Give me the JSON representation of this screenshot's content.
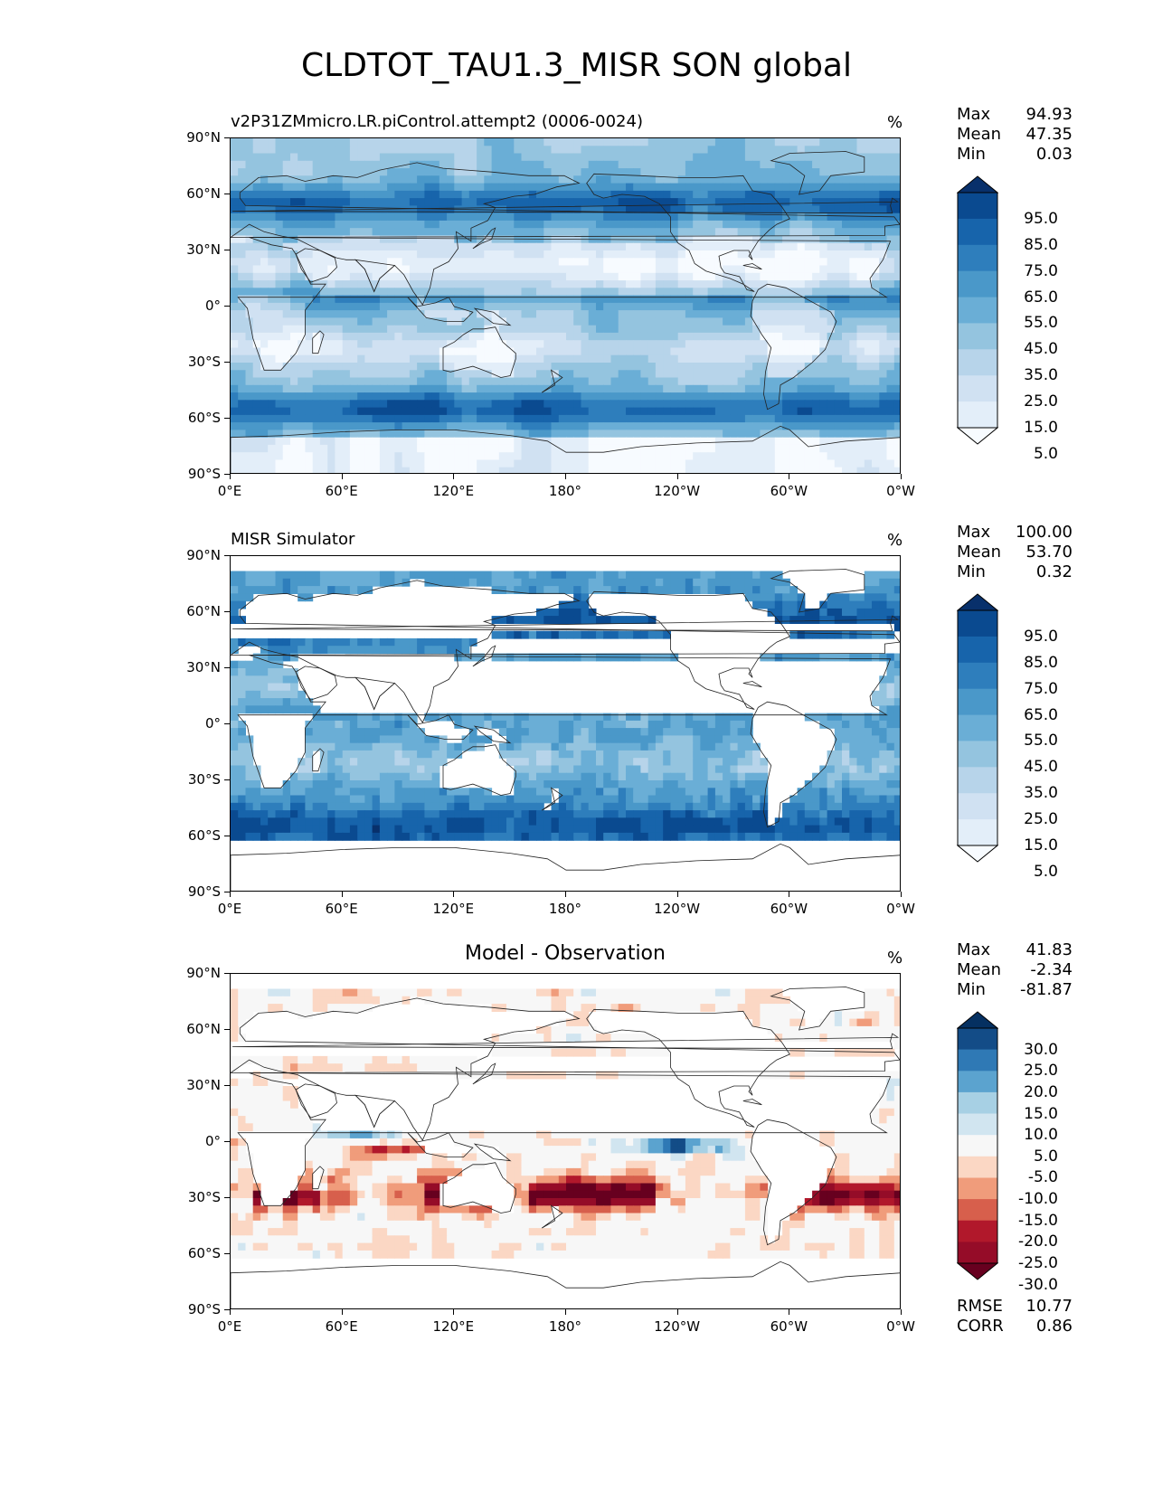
{
  "figure": {
    "title": "CLDTOT_TAU1.3_MISR SON global"
  },
  "axes": {
    "lat_ticks": [
      "90°N",
      "60°N",
      "30°N",
      "0°",
      "30°S",
      "60°S",
      "90°S"
    ],
    "lon_ticks": [
      "0°E",
      "60°E",
      "120°E",
      "180°",
      "120°W",
      "60°W",
      "0°W"
    ]
  },
  "panels": [
    {
      "subtitle": "v2P31ZMmicro.LR.piControl.attempt2 (0006-0024)",
      "units": "%",
      "stats": {
        "max_label": "Max",
        "max": "94.93",
        "mean_label": "Mean",
        "mean": "47.35",
        "min_label": "Min",
        "min": "0.03"
      },
      "colorbar_labels": [
        "95.0",
        "85.0",
        "75.0",
        "65.0",
        "55.0",
        "45.0",
        "35.0",
        "25.0",
        "15.0",
        "5.0"
      ],
      "colors": [
        "#08306b",
        "#0a4a90",
        "#1764ab",
        "#2e7ebc",
        "#4a98c9",
        "#6aaed6",
        "#94c4df",
        "#b7d4ea",
        "#d0e1f2",
        "#e3eef9",
        "#f7fbff"
      ]
    },
    {
      "subtitle": "MISR Simulator",
      "units": "%",
      "stats": {
        "max_label": "Max",
        "max": "100.00",
        "mean_label": "Mean",
        "mean": "53.70",
        "min_label": "Min",
        "min": "0.32"
      },
      "colorbar_labels": [
        "95.0",
        "85.0",
        "75.0",
        "65.0",
        "55.0",
        "45.0",
        "35.0",
        "25.0",
        "15.0",
        "5.0"
      ],
      "colors": [
        "#08306b",
        "#0a4a90",
        "#1764ab",
        "#2e7ebc",
        "#4a98c9",
        "#6aaed6",
        "#94c4df",
        "#b7d4ea",
        "#d0e1f2",
        "#e3eef9",
        "#f7fbff"
      ]
    },
    {
      "subtitle": "Model - Observation",
      "units": "%",
      "stats": {
        "max_label": "Max",
        "max": "41.83",
        "mean_label": "Mean",
        "mean": "-2.34",
        "min_label": "Min",
        "min": "-81.87"
      },
      "colorbar_labels": [
        "30.0",
        "25.0",
        "20.0",
        "15.0",
        "10.0",
        "5.0",
        "-5.0",
        "-10.0",
        "-15.0",
        "-20.0",
        "-25.0",
        "-30.0"
      ],
      "colors": [
        "#053061",
        "#134c87",
        "#2f79b5",
        "#5ba3cf",
        "#a7d0e4",
        "#d1e5f0",
        "#f7f7f7",
        "#fbd7c4",
        "#f09c7b",
        "#d75f4c",
        "#b1182b",
        "#950c28",
        "#67001f"
      ],
      "metrics": {
        "rmse_label": "RMSE",
        "rmse": "10.77",
        "corr_label": "CORR",
        "corr": "0.86"
      }
    }
  ],
  "chart_data": [
    {
      "type": "heatmap",
      "title": "v2P31ZMmicro.LR.piControl.attempt2 (0006-0024)",
      "units": "%",
      "xlim": [
        0,
        360
      ],
      "ylim": [
        -90,
        90
      ],
      "x_ticks": [
        "0°E",
        "60°E",
        "120°E",
        "180°",
        "120°W",
        "60°W",
        "0°W"
      ],
      "y_ticks": [
        "90°N",
        "60°N",
        "30°N",
        "0°",
        "30°S",
        "60°S",
        "90°S"
      ],
      "levels": [
        0,
        5,
        15,
        25,
        35,
        45,
        55,
        65,
        75,
        85,
        95,
        100
      ],
      "max": 94.93,
      "mean": 47.35,
      "min": 0.03,
      "map": "global cloud fraction, high over mid-latitude storm tracks (~85%), low over subtropical deserts and Antarctica (<15%)"
    },
    {
      "type": "heatmap",
      "title": "MISR Simulator",
      "units": "%",
      "xlim": [
        0,
        360
      ],
      "ylim": [
        -90,
        90
      ],
      "levels": [
        0,
        5,
        15,
        25,
        35,
        45,
        55,
        65,
        75,
        85,
        95,
        100
      ],
      "max": 100.0,
      "mean": 53.7,
      "min": 0.32,
      "map": "ocean only, valid between ~60°S and ~82°N, land masked white"
    },
    {
      "type": "heatmap",
      "title": "Model - Observation",
      "units": "%",
      "xlim": [
        0,
        360
      ],
      "ylim": [
        -90,
        90
      ],
      "levels": [
        -35,
        -30,
        -25,
        -20,
        -15,
        -10,
        -5,
        5,
        10,
        15,
        20,
        25,
        30,
        35
      ],
      "max": 41.83,
      "mean": -2.34,
      "min": -81.87,
      "rmse": 10.77,
      "corr": 0.86
    }
  ]
}
